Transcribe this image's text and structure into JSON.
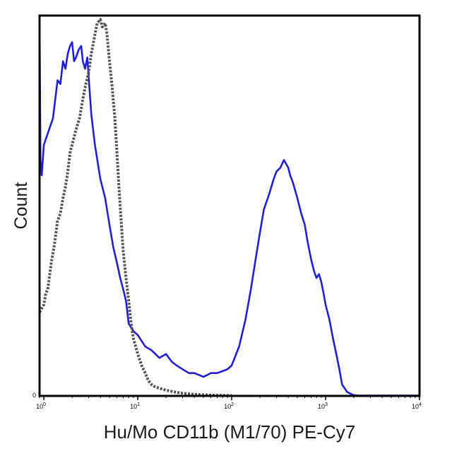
{
  "chart_data": {
    "type": "line",
    "title": "",
    "xlabel": "Hu/Mo CD11b (M1/70) PE-Cy7",
    "ylabel": "Count",
    "x_scale": "log",
    "xlim": [
      0.9,
      10000
    ],
    "ylim": [
      0,
      100
    ],
    "x_ticks": [
      {
        "value": 1,
        "label": "10",
        "exp": "0"
      },
      {
        "value": 10,
        "label": "10",
        "exp": "1"
      },
      {
        "value": 100,
        "label": "10",
        "exp": "2"
      },
      {
        "value": 1000,
        "label": "10",
        "exp": "3"
      },
      {
        "value": 10000,
        "label": "10",
        "exp": "4"
      }
    ],
    "y_tick_label": "0",
    "grid": false,
    "legend": "none",
    "series": [
      {
        "color": "#1f1fd6",
        "style": "solid",
        "x": [
          0.9,
          0.92,
          0.95,
          1.0,
          1.1,
          1.25,
          1.4,
          1.5,
          1.6,
          1.7,
          1.8,
          1.9,
          2.0,
          2.1,
          2.2,
          2.35,
          2.5,
          2.6,
          2.75,
          2.9,
          3.0,
          3.2,
          3.5,
          4.0,
          4.5,
          5.0,
          5.5,
          6.0,
          6.5,
          7.0,
          7.5,
          8.0,
          9.0,
          10.0,
          12.0,
          14.0,
          17.0,
          20.0,
          23.0,
          26.0,
          30.0,
          35.0,
          40.0,
          45.0,
          50.0,
          55.0,
          60.0,
          70.0,
          80.0,
          90.0,
          100.0,
          120.0,
          140.0,
          160.0,
          180.0,
          200.0,
          220.0,
          250.0,
          280.0,
          300.0,
          330.0,
          360.0,
          380.0,
          400.0,
          420.0,
          450.0,
          500.0,
          550.0,
          600.0,
          650.0,
          700.0,
          750.0,
          800.0,
          850.0,
          900.0,
          950.0,
          1000.0,
          1100.0,
          1200.0,
          1300.0,
          1400.0,
          1500.0,
          1700.0,
          1900.0,
          2000.0,
          2200.0,
          3000.0,
          5000.0,
          10000.0
        ],
        "y": [
          99,
          62,
          58,
          66,
          69,
          73,
          83,
          82,
          88,
          86,
          90,
          92,
          93,
          88,
          89,
          91,
          92,
          88,
          86,
          89,
          84,
          74,
          66,
          57,
          52,
          45,
          39,
          35,
          31,
          28,
          25,
          19,
          17,
          16,
          13,
          12,
          10,
          11,
          9,
          8,
          7,
          6,
          6,
          5.5,
          5,
          5.5,
          6,
          6,
          6.5,
          7,
          8,
          13,
          20,
          28,
          36,
          43,
          49,
          53,
          57,
          59,
          60,
          62,
          61,
          60,
          58,
          56,
          52,
          48,
          45,
          40,
          36,
          33,
          31,
          32,
          30,
          27,
          24,
          20,
          15,
          11,
          7,
          3,
          1,
          0.4,
          0.2,
          0.1,
          0.1,
          0.1,
          0.1
        ]
      },
      {
        "color": "#555555",
        "style": "dotted",
        "x": [
          0.9,
          0.95,
          1.0,
          1.05,
          1.1,
          1.2,
          1.3,
          1.4,
          1.5,
          1.6,
          1.7,
          1.8,
          1.9,
          2.0,
          2.2,
          2.4,
          2.6,
          2.8,
          3.0,
          3.2,
          3.5,
          3.7,
          4.0,
          4.2,
          4.5,
          4.7,
          5.0,
          5.3,
          5.7,
          6.0,
          6.3,
          6.7,
          7.0,
          7.5,
          8.0,
          8.5,
          9.0,
          10.0,
          11.0,
          12.0,
          13.0,
          14.0,
          15.0,
          17.0,
          20.0,
          25.0,
          30.0,
          40.0,
          60.0,
          100.0
        ],
        "y": [
          22,
          23,
          24,
          27,
          28,
          35,
          40,
          46,
          48,
          52,
          55,
          59,
          64,
          66,
          70,
          73,
          78,
          82,
          85,
          90,
          95,
          98,
          99,
          97,
          98,
          95,
          88,
          82,
          73,
          64,
          55,
          45,
          38,
          31,
          25,
          19,
          15,
          11,
          8,
          6,
          4,
          3,
          2.5,
          2,
          1.5,
          1,
          0.7,
          0.4,
          0.2,
          0.1
        ]
      }
    ]
  }
}
